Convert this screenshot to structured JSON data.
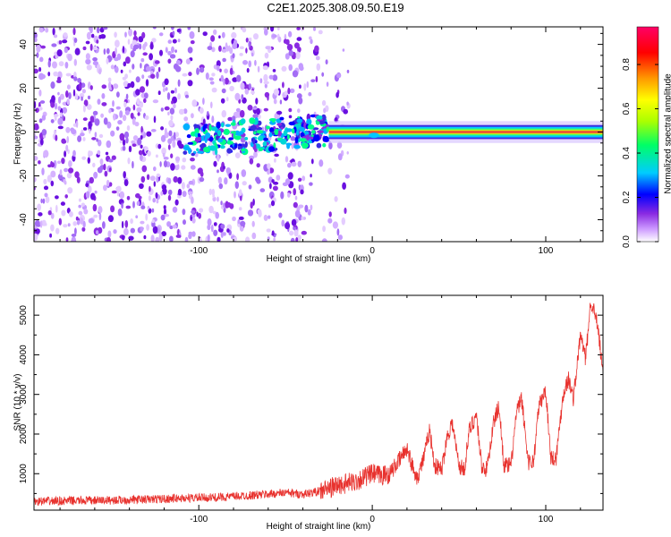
{
  "title": "C2E1.2025.308.09.50.E19",
  "chart_data": [
    {
      "type": "heatmap",
      "xlabel": "Height of straight line (km)",
      "ylabel": "Frequency (Hz)",
      "xlim": [
        -195,
        133
      ],
      "ylim": [
        -50,
        48
      ],
      "xticks": [
        -100,
        0,
        100
      ],
      "yticks": [
        -40,
        -20,
        0,
        20,
        40
      ],
      "colorbar": {
        "label": "Normalized spectral amplitude",
        "range": [
          0,
          0.97
        ],
        "ticks": [
          "0.0",
          "0.2",
          "0.4",
          "0.6",
          "0.8"
        ],
        "colormap": [
          "#ffffff",
          "#cc99ff",
          "#8a2be2",
          "#0000ff",
          "#00ccff",
          "#00ff66",
          "#aaff00",
          "#ffff00",
          "#ff9900",
          "#ff0000",
          "#ff0066"
        ]
      },
      "features": {
        "scatter_region_x": [
          -195,
          -25
        ],
        "scatter_color": "#7b1fe0",
        "band_region_x": [
          -25,
          133
        ],
        "band_center_freq": 0,
        "band_core_color": "#e8443a",
        "transition_cluster_x": [
          -108,
          -25
        ]
      }
    },
    {
      "type": "line",
      "xlabel": "Height of straight line (km)",
      "ylabel": "SNR (10 * v/v)",
      "xlim": [
        -195,
        133
      ],
      "ylim": [
        80,
        5500
      ],
      "xticks": [
        -100,
        0,
        100
      ],
      "yticks": [
        1000,
        2000,
        3000,
        4000,
        5000
      ],
      "color": "#e8322e",
      "x": [
        -195,
        -170,
        -150,
        -130,
        -110,
        -90,
        -70,
        -50,
        -40,
        -30,
        -20,
        -15,
        -10,
        -5,
        0,
        5,
        10,
        15,
        20,
        23,
        26,
        30,
        33,
        36,
        40,
        43,
        46,
        50,
        53,
        56,
        60,
        63,
        66,
        70,
        73,
        76,
        80,
        83,
        86,
        90,
        93,
        96,
        100,
        103,
        106,
        110,
        113,
        116,
        120,
        123,
        126,
        130,
        133
      ],
      "y": [
        300,
        320,
        330,
        350,
        380,
        400,
        450,
        520,
        480,
        560,
        700,
        750,
        800,
        900,
        1000,
        950,
        1000,
        1300,
        1650,
        1200,
        900,
        1450,
        2100,
        1200,
        1100,
        1900,
        2300,
        1200,
        1100,
        2100,
        2500,
        1200,
        1100,
        2300,
        2700,
        1200,
        1200,
        2500,
        2900,
        1300,
        1300,
        2700,
        3100,
        1400,
        1400,
        3000,
        3400,
        2900,
        4500,
        3900,
        5400,
        4700,
        3500
      ]
    }
  ]
}
